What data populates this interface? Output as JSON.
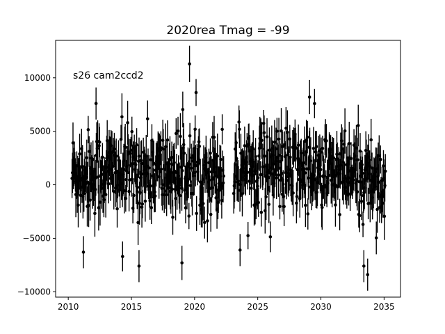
{
  "chart_data": {
    "type": "scatter",
    "title": "2020rea Tmag = -99",
    "annotation": "s26 cam2ccd2",
    "xlabel": "",
    "ylabel": "",
    "xlim": [
      2009.0,
      2036.3
    ],
    "ylim": [
      -10500,
      13500
    ],
    "x_ticks": [
      2010,
      2015,
      2020,
      2025,
      2030,
      2035
    ],
    "x_tick_labels": [
      "2010",
      "2015",
      "2020",
      "2025",
      "2030",
      "2035"
    ],
    "y_ticks": [
      -10000,
      -5000,
      0,
      5000,
      10000
    ],
    "y_tick_labels": [
      "−10000",
      "−5000",
      "0",
      "5000",
      "10000"
    ],
    "grid": false,
    "marker_color": "#000000",
    "errorbar": true,
    "segments": [
      {
        "x_start": 2010.3,
        "x_end": 2022.3,
        "n_points": 320,
        "level_start": 1200,
        "level_end": 1200,
        "scatter": 2600,
        "mean_err": 1700
      },
      {
        "x_start": 2023.1,
        "x_end": 2035.1,
        "n_points": 320,
        "level_start": 2000,
        "level_end": 500,
        "scatter": 2600,
        "mean_err": 1700
      }
    ],
    "notable_points": [
      {
        "x": 2019.6,
        "y": 11300,
        "err": 1700
      },
      {
        "x": 2015.6,
        "y": -7600,
        "err": 1500
      },
      {
        "x": 2019.0,
        "y": -7300,
        "err": 1600
      },
      {
        "x": 2014.3,
        "y": -6700,
        "err": 1400
      },
      {
        "x": 2023.6,
        "y": -6100,
        "err": 1500
      },
      {
        "x": 2033.4,
        "y": -7600,
        "err": 1500
      },
      {
        "x": 2033.7,
        "y": -8400,
        "err": 1500
      },
      {
        "x": 2011.2,
        "y": -6300,
        "err": 1500
      },
      {
        "x": 2012.2,
        "y": 7600,
        "err": 1500
      },
      {
        "x": 2029.1,
        "y": 8200,
        "err": 1600
      }
    ]
  }
}
